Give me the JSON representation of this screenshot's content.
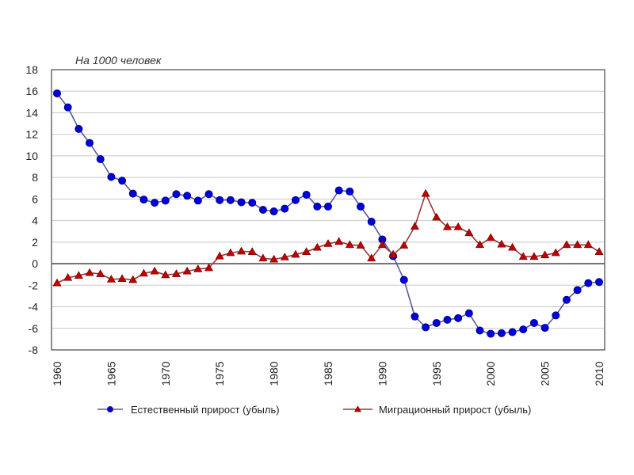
{
  "chart_data": {
    "type": "line",
    "title": "",
    "unit_label": "На 1000 человек",
    "xlabel": "",
    "ylabel": "",
    "xlim": [
      1960,
      2010
    ],
    "ylim": [
      -8,
      18
    ],
    "grid": true,
    "legend_position": "bottom",
    "y_ticks": [
      "18",
      "16",
      "14",
      "12",
      "10",
      "8",
      "6",
      "4",
      "2",
      "0",
      "-2",
      "-4",
      "-6",
      "-8"
    ],
    "y_tick_values": [
      18,
      16,
      14,
      12,
      10,
      8,
      6,
      4,
      2,
      0,
      -2,
      -4,
      -6,
      -8
    ],
    "x_ticks": [
      "1960",
      "1965",
      "1970",
      "1975",
      "1980",
      "1985",
      "1990",
      "1995",
      "2000",
      "2005",
      "2010"
    ],
    "x_tick_values": [
      1960,
      1965,
      1970,
      1975,
      1980,
      1985,
      1990,
      1995,
      2000,
      2005,
      2010
    ],
    "x": [
      1960,
      1961,
      1962,
      1963,
      1964,
      1965,
      1966,
      1967,
      1968,
      1969,
      1970,
      1971,
      1972,
      1973,
      1974,
      1975,
      1976,
      1977,
      1978,
      1979,
      1980,
      1981,
      1982,
      1983,
      1984,
      1985,
      1986,
      1987,
      1988,
      1989,
      1990,
      1991,
      1992,
      1993,
      1994,
      1995,
      1996,
      1997,
      1998,
      1999,
      2000,
      2001,
      2002,
      2003,
      2004,
      2005,
      2006,
      2007,
      2008,
      2009,
      2010
    ],
    "series": [
      {
        "name": "Естественный прирост (убыль)",
        "color": "#0000dd",
        "line_color": "#5a5a9e",
        "marker": "circle",
        "values": [
          15.8,
          14.5,
          12.5,
          11.2,
          9.7,
          8.05,
          7.7,
          6.5,
          5.95,
          5.65,
          5.85,
          6.45,
          6.3,
          5.85,
          6.45,
          5.9,
          5.9,
          5.7,
          5.65,
          5.0,
          4.85,
          5.1,
          5.9,
          6.4,
          5.3,
          5.3,
          6.8,
          6.7,
          5.3,
          3.9,
          2.25,
          0.7,
          -1.5,
          -4.9,
          -5.9,
          -5.5,
          -5.2,
          -5.05,
          -4.6,
          -6.2,
          -6.5,
          -6.45,
          -6.35,
          -6.1,
          -5.5,
          -5.95,
          -4.8,
          -3.35,
          -2.45,
          -1.8,
          -1.7
        ]
      },
      {
        "name": "Миграционный прирост (убыль)",
        "color": "#c00000",
        "line_color": "#9a3838",
        "marker": "triangle",
        "values": [
          -1.8,
          -1.3,
          -1.1,
          -0.85,
          -0.95,
          -1.45,
          -1.4,
          -1.5,
          -0.9,
          -0.7,
          -1.05,
          -0.95,
          -0.7,
          -0.5,
          -0.4,
          0.7,
          1.0,
          1.15,
          1.1,
          0.5,
          0.4,
          0.6,
          0.85,
          1.1,
          1.5,
          1.85,
          2.05,
          1.75,
          1.7,
          0.5,
          1.75,
          0.85,
          1.7,
          3.45,
          6.5,
          4.3,
          3.4,
          3.4,
          2.85,
          1.75,
          2.4,
          1.8,
          1.5,
          0.65,
          0.65,
          0.8,
          1.0,
          1.75,
          1.75,
          1.75,
          1.1
        ]
      }
    ]
  }
}
